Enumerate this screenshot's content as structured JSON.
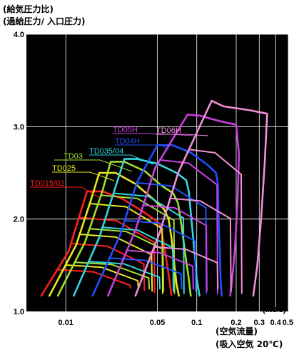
{
  "chart_data": {
    "type": "line",
    "title_lines": [
      "(給気圧力比)",
      "(過給圧力/ 入口圧力)"
    ],
    "xlabel_lines": [
      "(空気流量)",
      "(吸入空気 20℃)"
    ],
    "x_unit": "(m3/s)",
    "x_scale": "log",
    "xlim": [
      0.005,
      0.5
    ],
    "ylim": [
      1.0,
      4.0
    ],
    "x_ticks": [
      0.01,
      0.05,
      0.1,
      0.2,
      0.3,
      0.4,
      0.5
    ],
    "x_tick_labels": [
      "0.01",
      "0.05",
      "0.1",
      "0.2",
      "0.3",
      "0.4",
      "0.5"
    ],
    "y_ticks": [
      1.0,
      2.0,
      3.0,
      4.0
    ],
    "y_tick_labels": [
      "1.0",
      "2.0",
      "3.0",
      "4.0"
    ],
    "x_gridlines": [
      0.01,
      0.05,
      0.1,
      0.2,
      0.3,
      0.4,
      0.5
    ],
    "y_gridlines": [
      2.0,
      3.0,
      4.0
    ],
    "grid": true,
    "background": "#000000",
    "series": [
      {
        "name": "TD015/02",
        "color": "#ff2020",
        "outline": [
          [
            0.0065,
            1.17
          ],
          [
            0.0105,
            1.65
          ],
          [
            0.013,
            2.08
          ],
          [
            0.0145,
            2.3
          ],
          [
            0.019,
            2.3
          ],
          [
            0.027,
            2.22
          ],
          [
            0.038,
            2.09
          ],
          [
            0.047,
            2.0
          ],
          [
            0.052,
            1.95
          ],
          [
            0.055,
            1.8
          ],
          [
            0.058,
            1.6
          ],
          [
            0.061,
            1.4
          ],
          [
            0.064,
            1.18
          ]
        ]
      },
      {
        "name": "TD025",
        "color": "#e8e820",
        "outline": [
          [
            0.0075,
            1.17
          ],
          [
            0.012,
            1.72
          ],
          [
            0.0155,
            2.2
          ],
          [
            0.018,
            2.5
          ],
          [
            0.024,
            2.5
          ],
          [
            0.034,
            2.38
          ],
          [
            0.047,
            2.21
          ],
          [
            0.056,
            2.11
          ],
          [
            0.061,
            2.0
          ],
          [
            0.064,
            1.8
          ],
          [
            0.067,
            1.55
          ],
          [
            0.07,
            1.3
          ],
          [
            0.073,
            1.17
          ]
        ]
      },
      {
        "name": "TD03",
        "color": "#a0e030",
        "outline": [
          [
            0.0087,
            1.17
          ],
          [
            0.014,
            1.75
          ],
          [
            0.019,
            2.3
          ],
          [
            0.022,
            2.62
          ],
          [
            0.028,
            2.62
          ],
          [
            0.04,
            2.52
          ],
          [
            0.054,
            2.36
          ],
          [
            0.066,
            2.28
          ],
          [
            0.072,
            2.17
          ],
          [
            0.077,
            1.9
          ],
          [
            0.082,
            1.6
          ],
          [
            0.087,
            1.35
          ],
          [
            0.09,
            1.17
          ]
        ]
      },
      {
        "name": "TD035/04",
        "color": "#30d8e0",
        "outline": [
          [
            0.0115,
            1.17
          ],
          [
            0.018,
            1.8
          ],
          [
            0.024,
            2.35
          ],
          [
            0.028,
            2.65
          ],
          [
            0.035,
            2.65
          ],
          [
            0.05,
            2.6
          ],
          [
            0.07,
            2.5
          ],
          [
            0.083,
            2.42
          ],
          [
            0.087,
            2.3
          ],
          [
            0.091,
            2.0
          ],
          [
            0.096,
            1.65
          ],
          [
            0.1,
            1.35
          ],
          [
            0.105,
            1.17
          ]
        ]
      },
      {
        "name": "TD04H",
        "color": "#2050ff",
        "outline": [
          [
            0.016,
            1.17
          ],
          [
            0.026,
            1.83
          ],
          [
            0.035,
            2.4
          ],
          [
            0.05,
            2.8
          ],
          [
            0.065,
            2.8
          ],
          [
            0.09,
            2.72
          ],
          [
            0.12,
            2.59
          ],
          [
            0.14,
            2.5
          ],
          [
            0.145,
            2.38
          ],
          [
            0.147,
            2.0
          ],
          [
            0.15,
            1.65
          ],
          [
            0.152,
            1.35
          ],
          [
            0.155,
            1.17
          ]
        ]
      },
      {
        "name": "TD05H",
        "color": "#cc40e0",
        "outline": [
          [
            0.021,
            1.17
          ],
          [
            0.034,
            1.88
          ],
          [
            0.048,
            2.55
          ],
          [
            0.085,
            3.13
          ],
          [
            0.105,
            3.12
          ],
          [
            0.15,
            3.06
          ],
          [
            0.2,
            3.02
          ],
          [
            0.21,
            2.7
          ],
          [
            0.205,
            2.2
          ],
          [
            0.195,
            1.65
          ],
          [
            0.185,
            1.3
          ],
          [
            0.18,
            1.17
          ]
        ]
      },
      {
        "name": "TD06H",
        "color": "#f090d8",
        "outline": [
          [
            0.034,
            1.17
          ],
          [
            0.052,
            1.85
          ],
          [
            0.072,
            2.5
          ],
          [
            0.13,
            3.28
          ],
          [
            0.16,
            3.22
          ],
          [
            0.25,
            3.18
          ],
          [
            0.345,
            3.14
          ],
          [
            0.33,
            2.6
          ],
          [
            0.31,
            2.0
          ],
          [
            0.29,
            1.5
          ],
          [
            0.27,
            1.17
          ]
        ]
      }
    ]
  }
}
